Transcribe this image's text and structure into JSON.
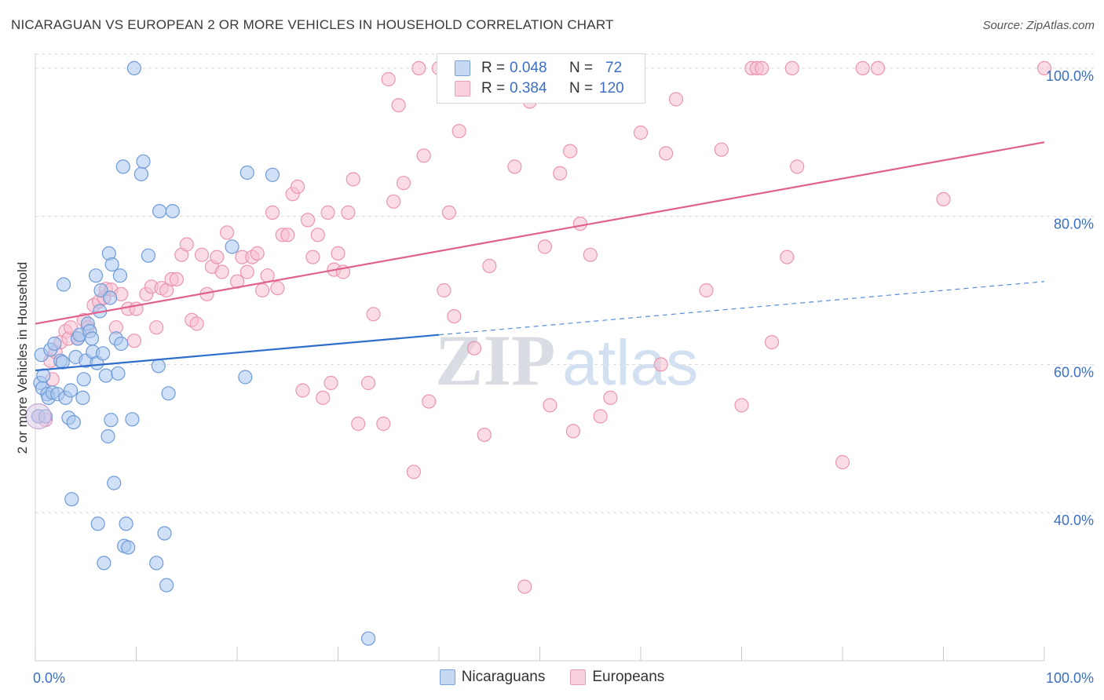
{
  "header": {
    "title": "NICARAGUAN VS EUROPEAN 2 OR MORE VEHICLES IN HOUSEHOLD CORRELATION CHART",
    "source": "Source: ZipAtlas.com"
  },
  "watermark": {
    "zip": "ZIP",
    "atlas": "atlas"
  },
  "legend": {
    "rows": [
      {
        "r_label": "R =",
        "r_value": "0.048",
        "n_label": "N =",
        "n_value": "72"
      },
      {
        "r_label": "R =",
        "r_value": "0.384",
        "n_label": "N =",
        "n_value": "120"
      }
    ]
  },
  "bottom_legend": {
    "nicaraguans": "Nicaraguans",
    "europeans": "Europeans"
  },
  "colors": {
    "nicaraguan_fill": "#a9c6ee",
    "nicaraguan_stroke": "#6f9bd8",
    "nicaraguan_line": "#2f6fcb",
    "european_fill": "#f6bfd0",
    "european_stroke": "#ea95b2",
    "european_line": "#e0608e",
    "axis_label": "#3b6fc4",
    "grid": "#dcdcdc"
  },
  "chart_data": {
    "type": "scatter",
    "title": "NICARAGUAN VS EUROPEAN 2 OR MORE VEHICLES IN HOUSEHOLD CORRELATION CHART",
    "xlabel": "",
    "ylabel": "2 or more Vehicles in Household",
    "xlim": [
      0,
      100
    ],
    "ylim": [
      20,
      102
    ],
    "x_tick_labels": [
      "0.0%",
      "100.0%"
    ],
    "y_ticks": [
      40,
      60,
      80,
      100
    ],
    "y_tick_labels": [
      "40.0%",
      "60.0%",
      "80.0%",
      "100.0%"
    ],
    "grid": true,
    "series": [
      {
        "name": "Nicaraguans",
        "r": 0.048,
        "n": 72,
        "trend_solid": {
          "x": [
            0,
            40
          ],
          "y": [
            59.2,
            64.0
          ]
        },
        "trend_dashed": {
          "x": [
            40,
            100
          ],
          "y": [
            64.0,
            71.2
          ]
        },
        "points": [
          [
            0.3,
            53
          ],
          [
            0.5,
            57.5
          ],
          [
            0.6,
            61.3
          ],
          [
            0.7,
            56.8
          ],
          [
            0.8,
            58.5
          ],
          [
            1.0,
            53
          ],
          [
            1.2,
            56
          ],
          [
            1.3,
            55.5
          ],
          [
            1.5,
            62
          ],
          [
            1.7,
            56.2
          ],
          [
            1.9,
            62.8
          ],
          [
            2.2,
            56
          ],
          [
            2.5,
            60.5
          ],
          [
            2.7,
            60.3
          ],
          [
            2.8,
            70.8
          ],
          [
            3.0,
            55.5
          ],
          [
            3.3,
            52.8
          ],
          [
            3.5,
            56.5
          ],
          [
            3.6,
            41.8
          ],
          [
            3.8,
            52.2
          ],
          [
            4.0,
            61
          ],
          [
            4.2,
            63.5
          ],
          [
            4.4,
            64
          ],
          [
            4.7,
            55.5
          ],
          [
            4.8,
            58
          ],
          [
            5.0,
            60.5
          ],
          [
            5.2,
            65.5
          ],
          [
            5.4,
            64.5
          ],
          [
            5.6,
            63.5
          ],
          [
            5.7,
            61.7
          ],
          [
            6.0,
            72
          ],
          [
            6.1,
            60.2
          ],
          [
            6.2,
            38.5
          ],
          [
            6.4,
            67.2
          ],
          [
            6.5,
            70
          ],
          [
            6.7,
            61.5
          ],
          [
            6.8,
            33.2
          ],
          [
            7.0,
            58.5
          ],
          [
            7.2,
            50.3
          ],
          [
            7.3,
            75
          ],
          [
            7.4,
            69
          ],
          [
            7.5,
            52.5
          ],
          [
            7.6,
            73.5
          ],
          [
            7.8,
            44
          ],
          [
            8.0,
            63.5
          ],
          [
            8.2,
            58.8
          ],
          [
            8.4,
            72
          ],
          [
            8.5,
            62.8
          ],
          [
            8.7,
            86.7
          ],
          [
            8.8,
            35.5
          ],
          [
            9.0,
            38.5
          ],
          [
            9.2,
            35.3
          ],
          [
            9.6,
            52.6
          ],
          [
            9.8,
            100
          ],
          [
            10.5,
            85.7
          ],
          [
            10.7,
            87.4
          ],
          [
            11.2,
            74.7
          ],
          [
            12.0,
            33.2
          ],
          [
            12.2,
            59.8
          ],
          [
            12.3,
            80.7
          ],
          [
            12.8,
            37.2
          ],
          [
            13.0,
            30.2
          ],
          [
            13.2,
            56.1
          ],
          [
            13.6,
            80.7
          ],
          [
            19.5,
            75.9
          ],
          [
            20.8,
            58.3
          ],
          [
            21.0,
            85.9
          ],
          [
            23.5,
            85.6
          ],
          [
            33.0,
            23
          ]
        ]
      },
      {
        "name": "Europeans",
        "r": 0.384,
        "n": 120,
        "trend_solid": {
          "x": [
            0,
            100
          ],
          "y": [
            65.5,
            90.0
          ]
        },
        "points": [
          [
            0.3,
            53
          ],
          [
            1.0,
            52.5
          ],
          [
            1.5,
            60.5
          ],
          [
            1.7,
            58
          ],
          [
            2.0,
            61.7
          ],
          [
            2.5,
            63
          ],
          [
            3.0,
            64.5
          ],
          [
            3.3,
            63.5
          ],
          [
            3.5,
            65
          ],
          [
            4.2,
            63.5
          ],
          [
            4.8,
            66
          ],
          [
            5.2,
            65
          ],
          [
            5.8,
            68
          ],
          [
            6.3,
            68.5
          ],
          [
            6.8,
            69
          ],
          [
            7.0,
            70.2
          ],
          [
            7.5,
            70.1
          ],
          [
            8.0,
            65
          ],
          [
            8.5,
            69.5
          ],
          [
            9.2,
            67.5
          ],
          [
            9.8,
            63.2
          ],
          [
            10.0,
            67.5
          ],
          [
            11.0,
            69.5
          ],
          [
            11.5,
            70.5
          ],
          [
            12.0,
            65
          ],
          [
            12.5,
            70.3
          ],
          [
            13.0,
            70
          ],
          [
            13.5,
            71.5
          ],
          [
            14.0,
            71.5
          ],
          [
            14.5,
            74.8
          ],
          [
            15.0,
            76.2
          ],
          [
            15.5,
            66
          ],
          [
            16.0,
            65.5
          ],
          [
            16.5,
            74.8
          ],
          [
            17.0,
            69.5
          ],
          [
            17.5,
            73.2
          ],
          [
            18.0,
            74.5
          ],
          [
            18.5,
            72.5
          ],
          [
            19.0,
            77.8
          ],
          [
            20.0,
            71.2
          ],
          [
            20.5,
            74.5
          ],
          [
            21.0,
            72.5
          ],
          [
            21.5,
            74.5
          ],
          [
            22.0,
            75
          ],
          [
            22.5,
            70
          ],
          [
            23.0,
            72
          ],
          [
            23.5,
            80.5
          ],
          [
            24.0,
            70.3
          ],
          [
            24.5,
            77.5
          ],
          [
            25.0,
            77.5
          ],
          [
            25.5,
            83
          ],
          [
            26.0,
            84
          ],
          [
            26.5,
            56.5
          ],
          [
            27.0,
            79.5
          ],
          [
            27.5,
            74.5
          ],
          [
            28.0,
            77.5
          ],
          [
            28.5,
            55.5
          ],
          [
            29.0,
            80.5
          ],
          [
            29.3,
            57.5
          ],
          [
            29.6,
            72.8
          ],
          [
            30.0,
            75
          ],
          [
            30.5,
            72.5
          ],
          [
            31.0,
            80.5
          ],
          [
            31.5,
            85
          ],
          [
            32.0,
            52
          ],
          [
            33.0,
            57.5
          ],
          [
            33.5,
            66.8
          ],
          [
            34.5,
            52
          ],
          [
            35.0,
            98.5
          ],
          [
            35.5,
            82
          ],
          [
            36.0,
            95
          ],
          [
            36.5,
            84.5
          ],
          [
            37.5,
            45.5
          ],
          [
            38.0,
            100
          ],
          [
            38.5,
            88.2
          ],
          [
            39.0,
            55
          ],
          [
            40.0,
            100
          ],
          [
            40.5,
            70
          ],
          [
            41.0,
            80.5
          ],
          [
            41.5,
            66.5
          ],
          [
            42.0,
            91.5
          ],
          [
            43.5,
            62.2
          ],
          [
            44.5,
            50.5
          ],
          [
            45.0,
            73.3
          ],
          [
            46.0,
            100
          ],
          [
            47.5,
            86.7
          ],
          [
            48.5,
            30
          ],
          [
            49.0,
            95.5
          ],
          [
            50.0,
            99
          ],
          [
            50.5,
            75.9
          ],
          [
            51.0,
            54.5
          ],
          [
            52.0,
            85.8
          ],
          [
            53.0,
            88.8
          ],
          [
            53.3,
            51
          ],
          [
            54.0,
            79
          ],
          [
            55.0,
            74.8
          ],
          [
            56.0,
            53
          ],
          [
            57.0,
            55.5
          ],
          [
            60.0,
            91.3
          ],
          [
            62.0,
            60
          ],
          [
            62.5,
            88.5
          ],
          [
            63.5,
            95.8
          ],
          [
            66.5,
            70
          ],
          [
            68.0,
            89
          ],
          [
            70.0,
            54.5
          ],
          [
            71.0,
            100
          ],
          [
            71.5,
            100
          ],
          [
            72.0,
            100
          ],
          [
            73.0,
            63
          ],
          [
            74.5,
            74.5
          ],
          [
            75.0,
            100
          ],
          [
            75.5,
            86.7
          ],
          [
            80.0,
            46.8
          ],
          [
            82.0,
            100
          ],
          [
            83.5,
            100
          ],
          [
            90.0,
            82.3
          ],
          [
            100,
            100
          ]
        ]
      }
    ]
  }
}
